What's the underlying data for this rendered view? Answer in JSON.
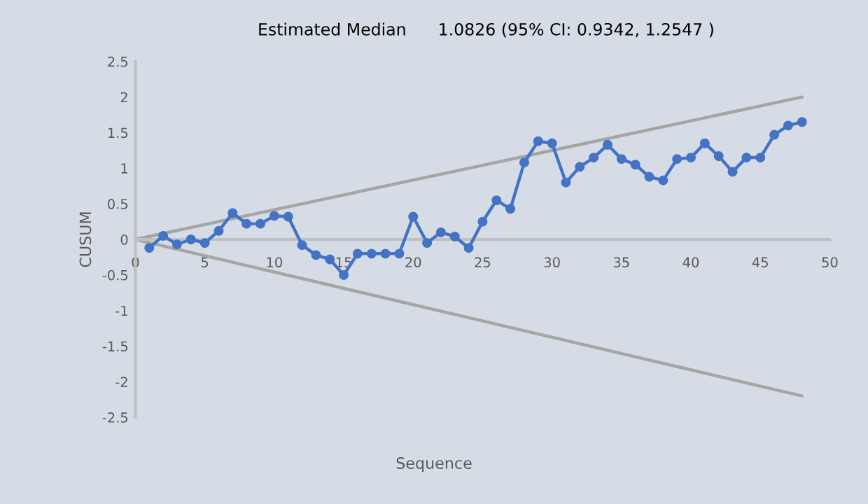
{
  "chart_data": {
    "type": "line",
    "title": "Estimated Median      1.0826 (95% CI: 0.9342, 1.2547 )",
    "xlabel": "Sequence",
    "ylabel": "CUSUM",
    "series": [
      {
        "color": "#4472c4",
        "marker": "circle",
        "x": [
          1,
          2,
          3,
          4,
          5,
          6,
          7,
          8,
          9,
          10,
          11,
          12,
          13,
          14,
          15,
          16,
          17,
          18,
          19,
          20,
          21,
          22,
          23,
          24,
          25,
          26,
          27,
          28,
          29,
          30,
          31,
          32,
          33,
          34,
          35,
          36,
          37,
          38,
          39,
          40,
          41,
          42,
          43,
          44,
          45,
          46,
          47,
          48
        ],
        "values": [
          -0.12,
          0.05,
          -0.07,
          0,
          -0.05,
          0.12,
          0.37,
          0.22,
          0.22,
          0.33,
          0.32,
          -0.08,
          -0.22,
          -0.28,
          -0.5,
          -0.2,
          -0.2,
          -0.2,
          -0.2,
          0.32,
          -0.05,
          0.1,
          0.04,
          -0.12,
          0.25,
          0.55,
          0.43,
          1.08,
          1.38,
          1.35,
          0.8,
          1.02,
          1.15,
          1.33,
          1.13,
          1.05,
          0.88,
          0.83,
          1.13,
          1.15,
          1.35,
          1.17,
          0.95,
          1.15,
          1.15,
          1.47,
          1.6,
          1.65
        ]
      },
      {
        "color": "#a5a5a5",
        "marker": "none",
        "x": [
          0,
          48
        ],
        "values": [
          0,
          2.0
        ]
      },
      {
        "color": "#a5a5a5",
        "marker": "none",
        "x": [
          0,
          48
        ],
        "values": [
          0,
          -2.2
        ]
      }
    ],
    "xlim": [
      0,
      50
    ],
    "xticks": [
      0,
      5,
      10,
      15,
      20,
      25,
      30,
      35,
      40,
      45,
      50
    ],
    "ylim": [
      -2.5,
      2.5
    ],
    "yticks": [
      -2.5,
      -2,
      -1.5,
      -1,
      -0.5,
      0,
      0.5,
      1,
      1.5,
      2,
      2.5
    ],
    "grid": false,
    "legend": false
  }
}
